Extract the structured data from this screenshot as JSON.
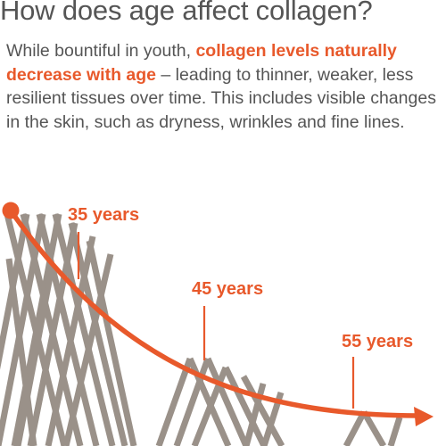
{
  "title": "How does age affect collagen?",
  "intro": {
    "before": "While bountiful in youth, ",
    "highlight": "collagen levels naturally decrease with age",
    "after": " – leading to thinner, weaker, less resilient tissues over time. This includes visible changes in the skin, such as dryness, wrinkles and fine lines."
  },
  "labels": {
    "age1": "35 years",
    "age2": "45 years",
    "age3": "55 years"
  },
  "colors": {
    "accent": "#e8592b",
    "text": "#555555",
    "fibers": "#9a9189"
  }
}
